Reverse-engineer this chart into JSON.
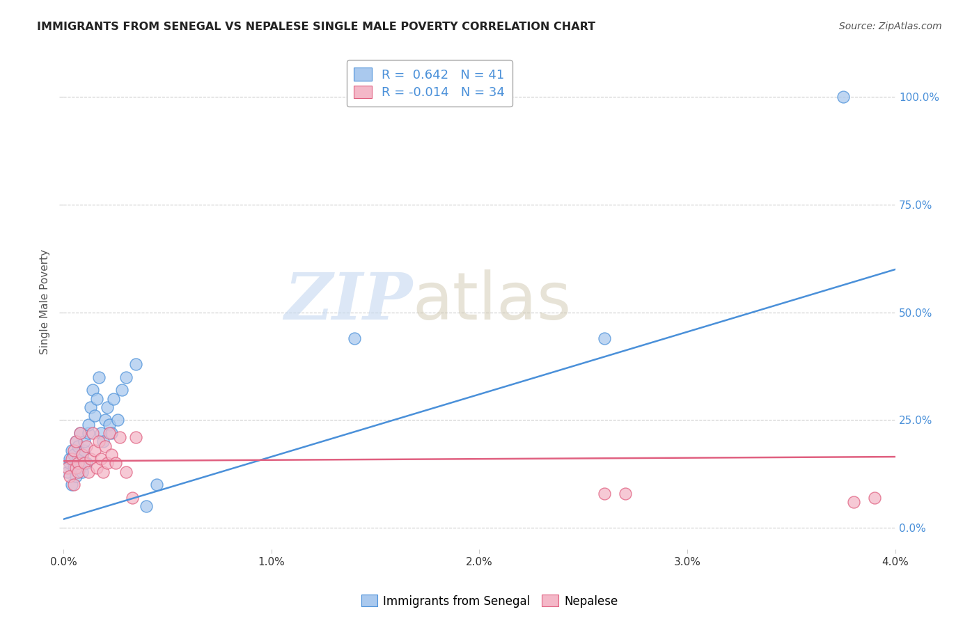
{
  "title": "IMMIGRANTS FROM SENEGAL VS NEPALESE SINGLE MALE POVERTY CORRELATION CHART",
  "source": "Source: ZipAtlas.com",
  "ylabel": "Single Male Poverty",
  "xlim": [
    0.0,
    0.04
  ],
  "ylim": [
    -0.05,
    1.1
  ],
  "yticks": [
    0.0,
    0.25,
    0.5,
    0.75,
    1.0
  ],
  "ytick_labels_right": [
    "0.0%",
    "25.0%",
    "50.0%",
    "75.0%",
    "100.0%"
  ],
  "xticks": [
    0.0,
    0.01,
    0.02,
    0.03,
    0.04
  ],
  "xtick_labels": [
    "0.0%",
    "1.0%",
    "2.0%",
    "3.0%",
    "4.0%"
  ],
  "blue_color": "#aac9ee",
  "pink_color": "#f4b8c8",
  "blue_line_color": "#4a90d9",
  "pink_line_color": "#e06080",
  "R_blue": 0.642,
  "N_blue": 41,
  "R_pink": -0.014,
  "N_pink": 34,
  "legend_label_blue": "Immigrants from Senegal",
  "legend_label_pink": "Nepalese",
  "watermark_zip": "ZIP",
  "watermark_atlas": "atlas",
  "grid_color": "#cccccc",
  "background_color": "#ffffff",
  "blue_line_y0": 0.02,
  "blue_line_y1": 0.6,
  "pink_line_y0": 0.155,
  "pink_line_y1": 0.165,
  "blue_scatter_x": [
    0.0002,
    0.0003,
    0.0003,
    0.0004,
    0.0004,
    0.0005,
    0.0005,
    0.0006,
    0.0006,
    0.0007,
    0.0007,
    0.0008,
    0.0008,
    0.0009,
    0.0009,
    0.001,
    0.001,
    0.0011,
    0.0012,
    0.0012,
    0.0013,
    0.0014,
    0.0015,
    0.0016,
    0.0017,
    0.0018,
    0.0019,
    0.002,
    0.0021,
    0.0022,
    0.0023,
    0.0024,
    0.0026,
    0.0028,
    0.003,
    0.0035,
    0.004,
    0.0045,
    0.014,
    0.026,
    0.0375
  ],
  "blue_scatter_y": [
    0.13,
    0.15,
    0.16,
    0.1,
    0.18,
    0.14,
    0.17,
    0.12,
    0.2,
    0.16,
    0.19,
    0.14,
    0.22,
    0.17,
    0.13,
    0.18,
    0.2,
    0.15,
    0.22,
    0.24,
    0.28,
    0.32,
    0.26,
    0.3,
    0.35,
    0.22,
    0.2,
    0.25,
    0.28,
    0.24,
    0.22,
    0.3,
    0.25,
    0.32,
    0.35,
    0.38,
    0.05,
    0.1,
    0.44,
    0.44,
    1.0
  ],
  "pink_scatter_x": [
    0.0002,
    0.0003,
    0.0004,
    0.0005,
    0.0005,
    0.0006,
    0.0006,
    0.0007,
    0.0007,
    0.0008,
    0.0009,
    0.001,
    0.0011,
    0.0012,
    0.0013,
    0.0014,
    0.0015,
    0.0016,
    0.0017,
    0.0018,
    0.0019,
    0.002,
    0.0021,
    0.0022,
    0.0023,
    0.0025,
    0.0027,
    0.003,
    0.0033,
    0.0035,
    0.026,
    0.027,
    0.038,
    0.039
  ],
  "pink_scatter_y": [
    0.14,
    0.12,
    0.16,
    0.1,
    0.18,
    0.14,
    0.2,
    0.15,
    0.13,
    0.22,
    0.17,
    0.15,
    0.19,
    0.13,
    0.16,
    0.22,
    0.18,
    0.14,
    0.2,
    0.16,
    0.13,
    0.19,
    0.15,
    0.22,
    0.17,
    0.15,
    0.21,
    0.13,
    0.07,
    0.21,
    0.08,
    0.08,
    0.06,
    0.07
  ]
}
